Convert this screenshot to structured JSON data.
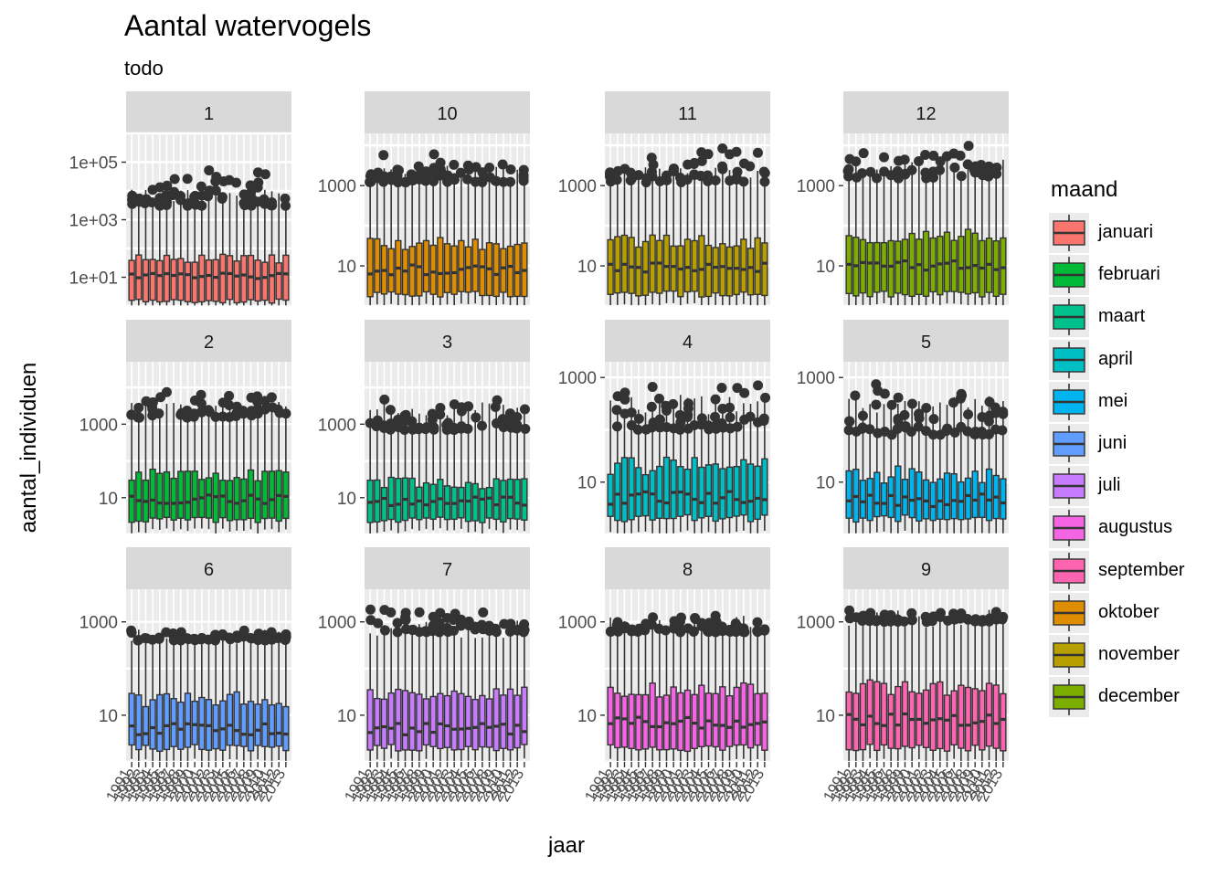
{
  "chart_data": {
    "type": "box",
    "title": "Aantal watervogels",
    "subtitle": "todo",
    "xlabel": "jaar",
    "ylabel": "aantal_individuen",
    "y_scale": "log10",
    "legend": {
      "title": "maand",
      "position": "right",
      "entries": [
        {
          "label": "januari",
          "color": "#F8766D"
        },
        {
          "label": "februari",
          "color": "#00BA38"
        },
        {
          "label": "maart",
          "color": "#00C08B"
        },
        {
          "label": "april",
          "color": "#00BFC4"
        },
        {
          "label": "mei",
          "color": "#00B4F0"
        },
        {
          "label": "juni",
          "color": "#619CFF"
        },
        {
          "label": "juli",
          "color": "#C77CFF"
        },
        {
          "label": "augustus",
          "color": "#F564E3"
        },
        {
          "label": "september",
          "color": "#FF64B0"
        },
        {
          "label": "oktober",
          "color": "#DE8C00"
        },
        {
          "label": "november",
          "color": "#B79F00"
        },
        {
          "label": "december",
          "color": "#7CAE00"
        }
      ]
    },
    "x_tick_labels": [
      "1991",
      "1992",
      "1993",
      "1994",
      "1995",
      "1996",
      "1997",
      "1998",
      "1999",
      "2000",
      "2001",
      "2002",
      "2003",
      "2004",
      "2005",
      "2006",
      "2007",
      "2008",
      "2009",
      "2010",
      "2011",
      "2012",
      "2013"
    ],
    "panels": [
      {
        "label": "1",
        "month": "januari",
        "color": "#F8766D",
        "ylim": [
          1,
          1000000
        ],
        "yticks": [
          {
            "v": 10,
            "label": "1e+01"
          },
          {
            "v": 1000,
            "label": "1e+03"
          },
          {
            "v": 100000,
            "label": "1e+05"
          }
        ],
        "q1": 1.5,
        "median": 12,
        "q3": 45,
        "whisker_high": 7000,
        "outlier_min": 3000,
        "outlier_max": 80000
      },
      {
        "label": "10",
        "month": "oktober",
        "color": "#DE8C00",
        "ylim": [
          1,
          20000
        ],
        "yticks": [
          {
            "v": 10,
            "label": "10"
          },
          {
            "v": 1000,
            "label": "1000"
          }
        ],
        "q1": 2,
        "median": 8,
        "q3": 35,
        "whisker_high": 2000,
        "outlier_min": 1200,
        "outlier_max": 6500
      },
      {
        "label": "11",
        "month": "november",
        "color": "#B79F00",
        "ylim": [
          1,
          20000
        ],
        "yticks": [
          {
            "v": 10,
            "label": "10"
          },
          {
            "v": 1000,
            "label": "1000"
          }
        ],
        "q1": 2,
        "median": 9,
        "q3": 40,
        "whisker_high": 2000,
        "outlier_min": 1200,
        "outlier_max": 12000
      },
      {
        "label": "12",
        "month": "december",
        "color": "#7CAE00",
        "ylim": [
          1,
          20000
        ],
        "yticks": [
          {
            "v": 10,
            "label": "10"
          },
          {
            "v": 1000,
            "label": "1000"
          }
        ],
        "q1": 2,
        "median": 10,
        "q3": 55,
        "whisker_high": 3500,
        "outlier_min": 1500,
        "outlier_max": 12000
      },
      {
        "label": "2",
        "month": "februari",
        "color": "#00BA38",
        "ylim": [
          1,
          50000
        ],
        "yticks": [
          {
            "v": 10,
            "label": "10"
          },
          {
            "v": 1000,
            "label": "1000"
          }
        ],
        "q1": 2.5,
        "median": 9,
        "q3": 40,
        "whisker_high": 3000,
        "outlier_min": 1500,
        "outlier_max": 9000
      },
      {
        "label": "3",
        "month": "maart",
        "color": "#00C08B",
        "ylim": [
          1,
          50000
        ],
        "yticks": [
          {
            "v": 10,
            "label": "10"
          },
          {
            "v": 1000,
            "label": "1000"
          }
        ],
        "q1": 2.5,
        "median": 8,
        "q3": 25,
        "whisker_high": 2500,
        "outlier_min": 700,
        "outlier_max": 6000
      },
      {
        "label": "4",
        "month": "april",
        "color": "#00BFC4",
        "ylim": [
          1,
          2000
        ],
        "yticks": [
          {
            "v": 10,
            "label": "10"
          },
          {
            "v": 1000,
            "label": "1000"
          }
        ],
        "q1": 2,
        "median": 5,
        "q3": 20,
        "whisker_high": 300,
        "outlier_min": 100,
        "outlier_max": 1000
      },
      {
        "label": "5",
        "month": "mei",
        "color": "#00B4F0",
        "ylim": [
          1,
          2000
        ],
        "yticks": [
          {
            "v": 10,
            "label": "10"
          },
          {
            "v": 1000,
            "label": "1000"
          }
        ],
        "q1": 2,
        "median": 4.5,
        "q3": 14,
        "whisker_high": 300,
        "outlier_min": 80,
        "outlier_max": 1000
      },
      {
        "label": "6",
        "month": "juni",
        "color": "#619CFF",
        "ylim": [
          1,
          5000
        ],
        "yticks": [
          {
            "v": 10,
            "label": "10"
          },
          {
            "v": 1000,
            "label": "1000"
          }
        ],
        "q1": 2,
        "median": 5,
        "q3": 22,
        "whisker_high": 500,
        "outlier_min": 400,
        "outlier_max": 800
      },
      {
        "label": "7",
        "month": "juli",
        "color": "#C77CFF",
        "ylim": [
          1,
          5000
        ],
        "yticks": [
          {
            "v": 10,
            "label": "10"
          },
          {
            "v": 1000,
            "label": "1000"
          }
        ],
        "q1": 2,
        "median": 5,
        "q3": 28,
        "whisker_high": 700,
        "outlier_min": 600,
        "outlier_max": 2000
      },
      {
        "label": "8",
        "month": "augustus",
        "color": "#F564E3",
        "ylim": [
          1,
          5000
        ],
        "yticks": [
          {
            "v": 10,
            "label": "10"
          },
          {
            "v": 1000,
            "label": "1000"
          }
        ],
        "q1": 2,
        "median": 7,
        "q3": 35,
        "whisker_high": 1000,
        "outlier_min": 600,
        "outlier_max": 1500
      },
      {
        "label": "9",
        "month": "september",
        "color": "#FF64B0",
        "ylim": [
          1,
          5000
        ],
        "yticks": [
          {
            "v": 10,
            "label": "10"
          },
          {
            "v": 1000,
            "label": "1000"
          }
        ],
        "q1": 2,
        "median": 8,
        "q3": 40,
        "whisker_high": 1200,
        "outlier_min": 1000,
        "outlier_max": 2000
      }
    ]
  }
}
